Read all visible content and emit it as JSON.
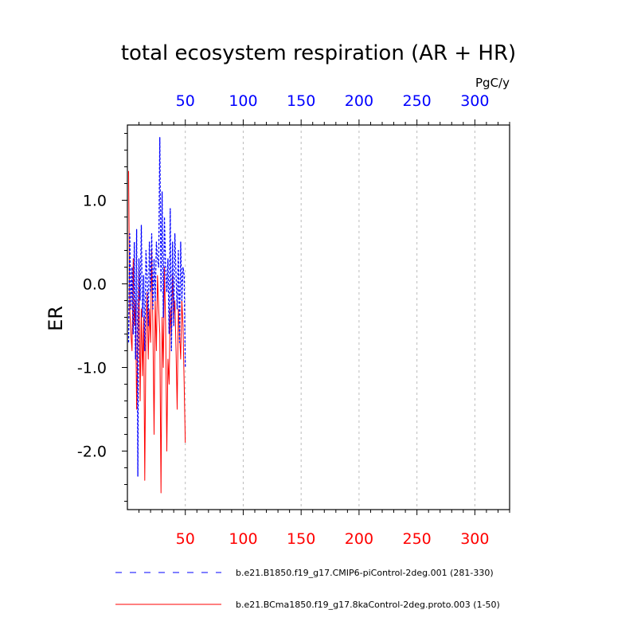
{
  "chart_data": {
    "type": "line",
    "title": "total ecosystem respiration (AR + HR)",
    "units": "PgC/y",
    "ylabel": "ER",
    "xlabel": "",
    "xlim": [
      0,
      330
    ],
    "ylim": [
      -2.7,
      1.9
    ],
    "x_ticks": [
      50,
      100,
      150,
      200,
      250,
      300
    ],
    "x_tick_labels": [
      "50",
      "100",
      "150",
      "200",
      "250",
      "300"
    ],
    "y_ticks": [
      1.0,
      0.0,
      -1.0,
      -2.0
    ],
    "y_tick_labels": [
      "1.0",
      "0.0",
      "-1.0",
      "-2.0"
    ],
    "grid": "vertical dashed at x ticks",
    "series": [
      {
        "name": "b.e21.B1850.f19_g17.CMIP6-piControl-2deg.001 (281-330)",
        "color": "#0000ff",
        "style": "dashed",
        "x": [
          1,
          2,
          3,
          4,
          5,
          6,
          7,
          8,
          9,
          10,
          11,
          12,
          13,
          14,
          15,
          16,
          17,
          18,
          19,
          20,
          21,
          22,
          23,
          24,
          25,
          26,
          27,
          28,
          29,
          30,
          31,
          32,
          33,
          34,
          35,
          36,
          37,
          38,
          39,
          40,
          41,
          42,
          43,
          44,
          45,
          46,
          47,
          48,
          49,
          50
        ],
        "values": [
          -0.7,
          0.6,
          -0.3,
          0.2,
          -0.6,
          0.5,
          -0.9,
          0.65,
          -2.3,
          0.3,
          -0.2,
          0.7,
          -0.4,
          0.1,
          -0.8,
          0.4,
          0.1,
          -0.5,
          0.5,
          -0.1,
          0.6,
          -0.3,
          0.3,
          -0.2,
          0.5,
          0.3,
          0.2,
          1.75,
          -0.1,
          1.1,
          -0.4,
          0.8,
          0.2,
          -0.1,
          0.3,
          -0.6,
          0.9,
          -0.8,
          0.5,
          -0.5,
          0.6,
          0.1,
          -0.3,
          0.4,
          -0.7,
          0.5,
          -0.2,
          0.2,
          0.1,
          -1.0
        ]
      },
      {
        "name": "b.e21.BCma1850.f19_g17.8kaControl-2deg.proto.003 (1-50)",
        "color": "#ff0000",
        "style": "solid",
        "x": [
          1,
          2,
          3,
          4,
          5,
          6,
          7,
          8,
          9,
          10,
          11,
          12,
          13,
          14,
          15,
          16,
          17,
          18,
          19,
          20,
          21,
          22,
          23,
          24,
          25,
          26,
          27,
          28,
          29,
          30,
          31,
          32,
          33,
          34,
          35,
          36,
          37,
          38,
          39,
          40,
          41,
          42,
          43,
          44,
          45,
          46,
          47,
          48,
          49,
          50
        ],
        "values": [
          1.35,
          -0.3,
          -0.6,
          -0.8,
          0.3,
          -0.5,
          -0.2,
          -1.5,
          -0.7,
          0.2,
          -1.4,
          -0.3,
          -1.1,
          -0.4,
          -2.35,
          -0.6,
          -0.1,
          -0.9,
          -0.3,
          -0.7,
          0.4,
          -0.5,
          -1.8,
          -0.2,
          -0.8,
          0.1,
          -0.3,
          -0.6,
          -2.5,
          -0.4,
          -1.0,
          0.2,
          -0.5,
          -2.0,
          -0.9,
          -1.2,
          -0.3,
          -0.6,
          0.1,
          -0.4,
          -0.2,
          -0.8,
          -1.5,
          -0.3,
          -0.6,
          -0.9,
          -0.2,
          -0.5,
          -1.2,
          -1.9
        ]
      }
    ]
  }
}
